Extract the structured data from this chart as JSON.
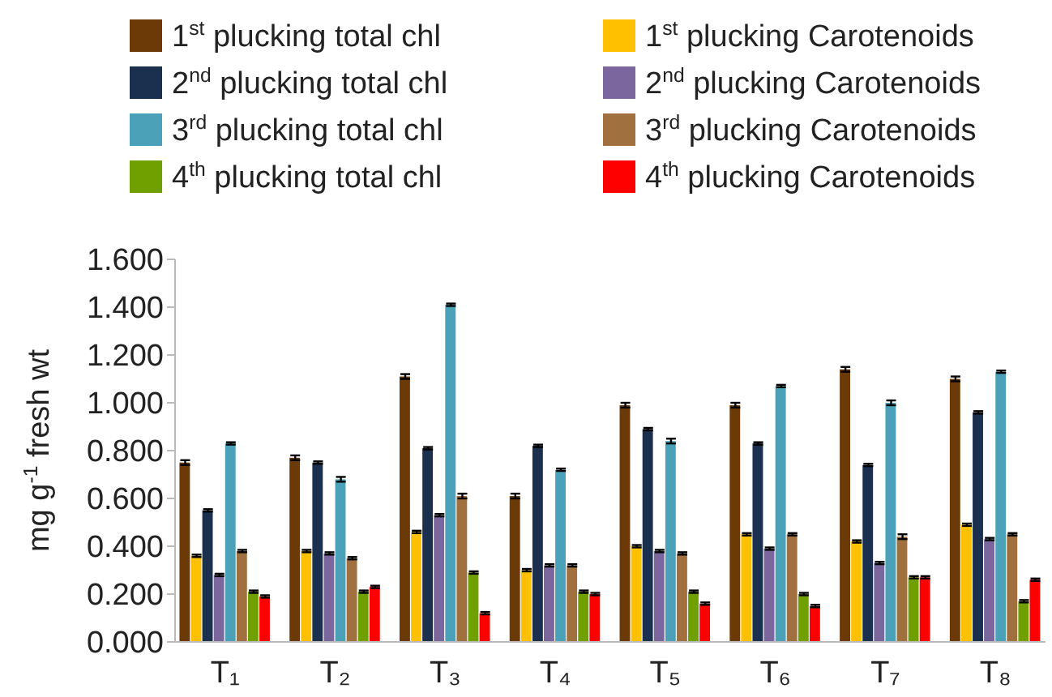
{
  "chart_data": {
    "type": "bar",
    "ylabel": "mg g$^{-1}$ fresh wt",
    "categories": [
      "T₁",
      "T₂",
      "T₃",
      "T₄",
      "T₅",
      "T₆",
      "T₇",
      "T₈"
    ],
    "ylim": [
      0,
      1.6
    ],
    "yticks": [
      {
        "value": 0,
        "label": "0.000"
      },
      {
        "value": 0.2,
        "label": "0.200"
      },
      {
        "value": 0.4,
        "label": "0.400"
      },
      {
        "value": 0.6,
        "label": "0.600"
      },
      {
        "value": 0.8,
        "label": "0.800"
      },
      {
        "value": 1.0,
        "label": "1.000"
      },
      {
        "value": 1.2,
        "label": "1.200"
      },
      {
        "value": 1.4,
        "label": "1.400"
      },
      {
        "value": 1.6,
        "label": "1.600"
      }
    ],
    "grid": false,
    "legend": "top",
    "series": [
      {
        "name": "1$^{st}$ plucking total chl",
        "color": "#6b3a07",
        "values": [
          0.75,
          0.77,
          1.11,
          0.61,
          0.99,
          0.99,
          1.14,
          1.1
        ],
        "errors": [
          0.01,
          0.01,
          0.01,
          0.01,
          0.01,
          0.01,
          0.01,
          0.01
        ]
      },
      {
        "name": "1$^{st}$ plucking Carotenoids",
        "color": "#ffc000",
        "values": [
          0.36,
          0.38,
          0.46,
          0.3,
          0.4,
          0.45,
          0.42,
          0.49
        ],
        "errors": [
          0.005,
          0.005,
          0.005,
          0.005,
          0.005,
          0.005,
          0.005,
          0.005
        ]
      },
      {
        "name": "2$^{nd}$ plucking total chl",
        "color": "#1b2f4e",
        "values": [
          0.55,
          0.75,
          0.81,
          0.82,
          0.89,
          0.83,
          0.74,
          0.96
        ],
        "errors": [
          0.005,
          0.005,
          0.005,
          0.005,
          0.005,
          0.005,
          0.005,
          0.005
        ]
      },
      {
        "name": "2$^{nd}$ plucking Carotenoids",
        "color": "#7b679e",
        "values": [
          0.28,
          0.37,
          0.53,
          0.32,
          0.38,
          0.39,
          0.33,
          0.43
        ],
        "errors": [
          0.005,
          0.005,
          0.005,
          0.005,
          0.005,
          0.005,
          0.005,
          0.005
        ]
      },
      {
        "name": "3$^{rd}$ plucking total chl",
        "color": "#4ba2b8",
        "values": [
          0.83,
          0.68,
          1.41,
          0.72,
          0.84,
          1.07,
          1.0,
          1.13
        ],
        "errors": [
          0.005,
          0.01,
          0.005,
          0.005,
          0.01,
          0.005,
          0.01,
          0.005
        ]
      },
      {
        "name": "3$^{rd}$ plucking Carotenoids",
        "color": "#a0703e",
        "values": [
          0.38,
          0.35,
          0.61,
          0.32,
          0.37,
          0.45,
          0.44,
          0.45
        ],
        "errors": [
          0.005,
          0.005,
          0.01,
          0.005,
          0.005,
          0.005,
          0.01,
          0.005
        ]
      },
      {
        "name": "4$^{th}$ plucking total chl",
        "color": "#6fa000",
        "values": [
          0.21,
          0.21,
          0.29,
          0.21,
          0.21,
          0.2,
          0.27,
          0.17
        ],
        "errors": [
          0.005,
          0.005,
          0.005,
          0.005,
          0.005,
          0.005,
          0.005,
          0.005
        ]
      },
      {
        "name": "4$^{th}$ plucking Carotenoids",
        "color": "#ff0000",
        "values": [
          0.19,
          0.23,
          0.12,
          0.2,
          0.16,
          0.15,
          0.27,
          0.26
        ],
        "errors": [
          0.005,
          0.005,
          0.005,
          0.005,
          0.005,
          0.005,
          0.005,
          0.005
        ]
      }
    ]
  }
}
